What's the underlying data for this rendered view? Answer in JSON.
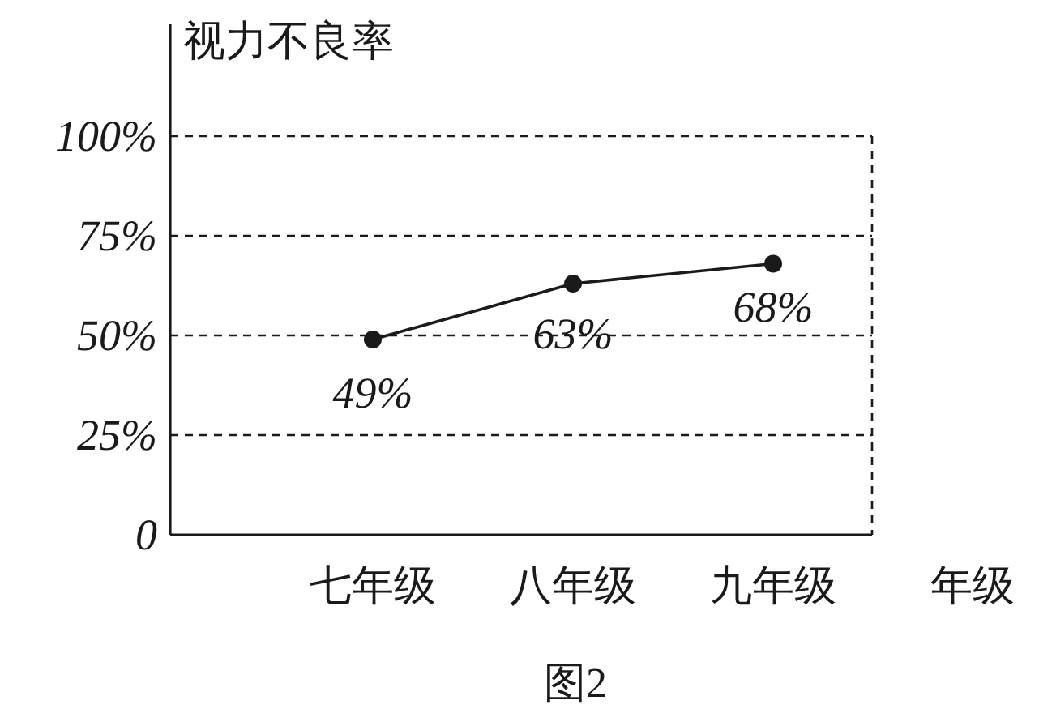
{
  "chart_data": {
    "type": "line",
    "ylabel": "视力不良率",
    "xlabel": "年级",
    "categories": [
      "七年级",
      "八年级",
      "九年级"
    ],
    "series": [
      {
        "color": "#1a1a1a",
        "values": [
          49,
          63,
          68
        ],
        "value_labels": [
          "49%",
          "63%",
          "68%"
        ]
      }
    ],
    "ylim": [
      0,
      100
    ],
    "yticks": [
      {
        "value": 0,
        "label": "0"
      },
      {
        "value": 25,
        "label": "25%"
      },
      {
        "value": 50,
        "label": "50%"
      },
      {
        "value": 75,
        "label": "75%"
      },
      {
        "value": 100,
        "label": "100%"
      }
    ],
    "grid": "y",
    "marker": "circle",
    "line_style": "solid",
    "annotations": [
      "图2"
    ]
  }
}
